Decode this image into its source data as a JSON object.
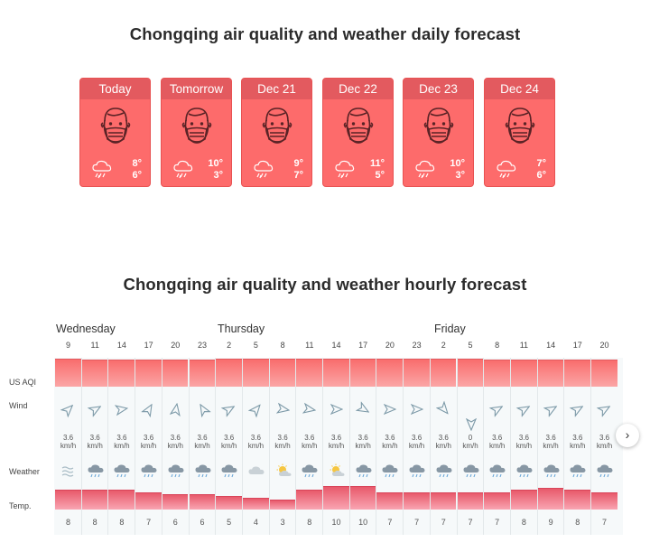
{
  "daily": {
    "title": "Chongqing air quality and weather daily forecast",
    "cards": [
      {
        "day": "Today",
        "hi": "8°",
        "lo": "6°"
      },
      {
        "day": "Tomorrow",
        "hi": "10°",
        "lo": "3°"
      },
      {
        "day": "Dec 21",
        "hi": "9°",
        "lo": "7°"
      },
      {
        "day": "Dec 22",
        "hi": "11°",
        "lo": "5°"
      },
      {
        "day": "Dec 23",
        "hi": "10°",
        "lo": "3°"
      },
      {
        "day": "Dec 24",
        "hi": "7°",
        "lo": "6°"
      }
    ],
    "card_icon": "face-mask-icon",
    "weather_icon": "rain-cloud-icon",
    "card_color": "#fd6b6b"
  },
  "hourly": {
    "title": "Chongqing air quality and weather hourly forecast",
    "days": [
      "Wednesday",
      "Thursday",
      "Friday"
    ],
    "row_labels": {
      "aqi": "US AQI",
      "wind": "Wind",
      "weather": "Weather",
      "temp": "Temp."
    },
    "hours": [
      "9",
      "11",
      "14",
      "17",
      "20",
      "23",
      "2",
      "5",
      "8",
      "11",
      "14",
      "17",
      "20",
      "23",
      "2",
      "5",
      "8",
      "11",
      "14",
      "17",
      "20"
    ],
    "aqi_level": [
      0.93,
      0.9,
      0.86,
      0.86,
      0.8,
      0.8,
      1.0,
      1.0,
      0.96,
      0.96,
      0.96,
      0.96,
      0.96,
      0.96,
      0.96,
      0.96,
      0.8,
      0.8,
      0.8,
      0.8,
      0.8
    ],
    "wind_speed": [
      "3.6",
      "3.6",
      "3.6",
      "3.6",
      "3.6",
      "3.6",
      "3.6",
      "3.6",
      "3.6",
      "3.6",
      "3.6",
      "3.6",
      "3.6",
      "3.6",
      "3.6",
      "0",
      "3.6",
      "3.6",
      "3.6",
      "3.6",
      "3.6"
    ],
    "wind_unit": "km/h",
    "wind_dir": [
      45,
      60,
      80,
      30,
      10,
      330,
      60,
      40,
      100,
      100,
      90,
      120,
      90,
      90,
      140,
      180,
      60,
      60,
      60,
      60,
      60
    ],
    "weather": [
      "fog",
      "rain",
      "rain",
      "rain",
      "rain",
      "rain",
      "rain",
      "cloudy",
      "sunny",
      "rain",
      "sunny",
      "rain",
      "rain",
      "rain",
      "rain",
      "rain",
      "rain",
      "rain",
      "rain",
      "rain",
      "rain"
    ],
    "temps": [
      8,
      8,
      8,
      7,
      6,
      6,
      5,
      4,
      3,
      8,
      10,
      10,
      7,
      7,
      7,
      7,
      7,
      8,
      9,
      8,
      7
    ],
    "next_label": "›"
  }
}
